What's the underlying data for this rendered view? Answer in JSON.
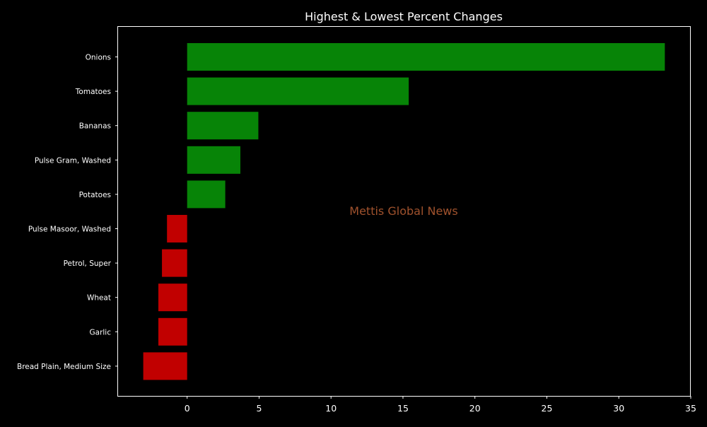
{
  "chart_data": {
    "type": "bar",
    "orientation": "horizontal",
    "title": "Highest & Lowest Percent Changes",
    "xlabel": "",
    "ylabel": "",
    "xlim": [
      -4.8,
      35
    ],
    "xticks": [
      0,
      5,
      10,
      15,
      20,
      25,
      30,
      35
    ],
    "categories": [
      "Onions",
      "Tomatoes",
      "Bananas",
      "Pulse Gram, Washed",
      "Potatoes",
      "Pulse Masoor, Washed",
      "Petrol, Super",
      "Wheat",
      "Garlic",
      "Bread Plain, Medium Size"
    ],
    "values": [
      33.2,
      15.4,
      4.95,
      3.7,
      2.65,
      -1.4,
      -1.75,
      -2.0,
      -2.0,
      -3.05
    ],
    "grid": false,
    "legend": "none",
    "watermark": "Mettis Global News",
    "colors": {
      "background": "#000000",
      "positive": "#078407",
      "negative": "#c10000",
      "text": "#ffffff",
      "axis": "#ffffff",
      "watermark": "#a0522d"
    }
  }
}
